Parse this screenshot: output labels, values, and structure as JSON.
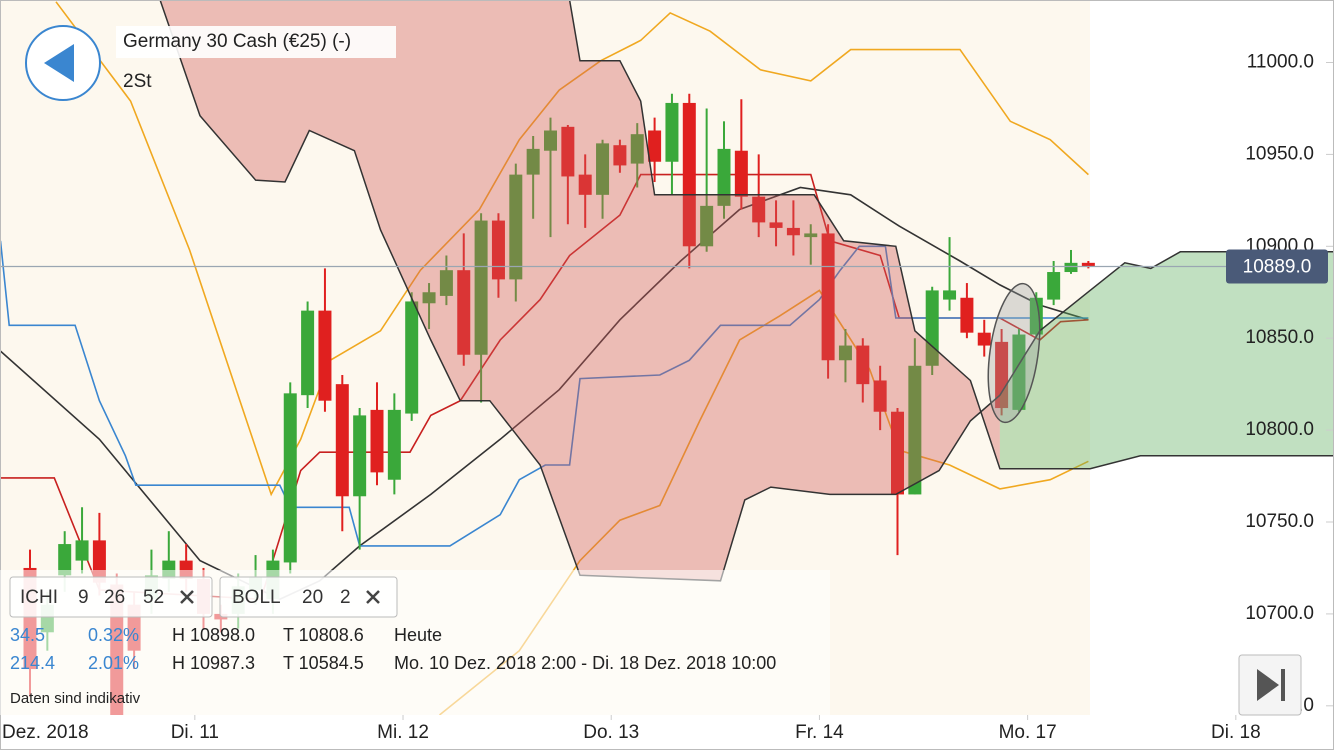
{
  "header": {
    "title": "Germany 30 Cash (€25) (-)",
    "timeframe": "2St"
  },
  "chart_data": {
    "type": "candlestick",
    "open": [
      10725,
      10690,
      10721,
      10729,
      10740,
      10716,
      10705,
      10708,
      10719,
      10729,
      10719,
      10700,
      10700,
      10713,
      10708,
      10728,
      10819,
      10865,
      10825,
      10764,
      10811,
      10773,
      10809,
      10869,
      10873,
      10887,
      10841,
      10914,
      10882,
      10939,
      10952,
      10965,
      10939,
      10928,
      10955,
      10945,
      10963,
      10946,
      10978,
      10900,
      10922,
      10952,
      10927,
      10913,
      10910,
      10905,
      10907,
      10838,
      10846,
      10827,
      10810,
      10765,
      10835,
      10871,
      10872,
      10853,
      10848,
      10811,
      10852,
      10871,
      10886,
      10891
    ],
    "high": [
      10735,
      10712,
      10745,
      10758,
      10755,
      10722,
      10712,
      10735,
      10745,
      10738,
      10725,
      10705,
      10722,
      10732,
      10735,
      10826,
      10870,
      10888,
      10830,
      10812,
      10826,
      10820,
      10875,
      10880,
      10895,
      10907,
      10918,
      10918,
      10945,
      10960,
      10970,
      10966,
      10950,
      10958,
      10958,
      10967,
      10970,
      10983,
      10983,
      10975,
      10968,
      10980,
      10950,
      10925,
      10925,
      10912,
      10912,
      10855,
      10850,
      10835,
      10812,
      10850,
      10878,
      10905,
      10880,
      10860,
      10855,
      10855,
      10875,
      10892,
      10898,
      10892
    ],
    "low": [
      10655,
      10680,
      10712,
      10722,
      10710,
      10645,
      10670,
      10700,
      10712,
      10712,
      10692,
      10690,
      10692,
      10705,
      10700,
      10722,
      10812,
      10810,
      10745,
      10735,
      10770,
      10765,
      10805,
      10855,
      10868,
      10835,
      10815,
      10872,
      10870,
      10915,
      10905,
      10912,
      10910,
      10915,
      10940,
      10932,
      10935,
      10928,
      10888,
      10897,
      10915,
      10920,
      10905,
      10900,
      10895,
      10890,
      10828,
      10826,
      10815,
      10800,
      10732,
      10765,
      10830,
      10865,
      10850,
      10840,
      10808,
      10810,
      10850,
      10868,
      10885,
      10888
    ],
    "close": [
      10670,
      10705,
      10738,
      10740,
      10717,
      10645,
      10680,
      10721,
      10729,
      10719,
      10700,
      10697,
      10715,
      10720,
      10729,
      10820,
      10865,
      10816,
      10764,
      10808,
      10777,
      10811,
      10870,
      10875,
      10887,
      10841,
      10914,
      10882,
      10939,
      10953,
      10963,
      10938,
      10928,
      10956,
      10944,
      10961,
      10946,
      10978,
      10900,
      10922,
      10953,
      10927,
      10913,
      10910,
      10906,
      10907,
      10838,
      10846,
      10825,
      10810,
      10765,
      10835,
      10876,
      10876,
      10853,
      10846,
      10812,
      10852,
      10872,
      10886,
      10891,
      10889
    ],
    "up_color": "#3aa83a",
    "down_color": "#e0201f",
    "xlim": [
      -1.7,
      75.2
    ],
    "xticks": [
      {
        "value": -2.5,
        "label": "Dez. 2018"
      },
      {
        "value": 9.5,
        "label": "Di. 11"
      },
      {
        "value": 21.5,
        "label": "Mi. 12"
      },
      {
        "value": 33.5,
        "label": "Do. 13"
      },
      {
        "value": 45.5,
        "label": "Fr. 14"
      },
      {
        "value": 57.5,
        "label": "Mo. 17"
      },
      {
        "value": 69.5,
        "label": "Di. 18"
      }
    ],
    "ylim": [
      10645,
      11034
    ],
    "yticks": [
      {
        "value": 10650,
        "label": "10650.0"
      },
      {
        "value": 10700,
        "label": "10700.0"
      },
      {
        "value": 10750,
        "label": "10750.0"
      },
      {
        "value": 10800,
        "label": "10800.0"
      },
      {
        "value": 10850,
        "label": "10850.0"
      },
      {
        "value": 10900,
        "label": "10900.0"
      },
      {
        "value": 10950,
        "label": "10950.0"
      },
      {
        "value": 11000,
        "label": "11000.0"
      }
    ],
    "current_price": {
      "value": 10889,
      "label": "10889.0"
    },
    "series": [
      {
        "color": "#f0a820",
        "x": [
          1.5,
          5.8,
          9.2,
          12.1,
          13.9,
          15.6,
          17.3,
          20.2,
          22.5,
          25.9,
          28.2,
          30.5,
          32.9,
          35.2,
          36.9,
          39.2,
          42.1,
          45,
          47.3,
          50.1,
          53.6,
          56.5,
          58.8,
          61
        ],
        "values": [
          11033,
          10979,
          10898,
          10816,
          10765,
          10795,
          10838,
          10854,
          10887,
          10920,
          10958,
          10985,
          11001,
          11012,
          11027,
          11017,
          10996,
          10990,
          11007,
          11007,
          11007,
          10968,
          10958,
          10939
        ]
      },
      {
        "color": "#f0a820",
        "x": [
          23.6,
          28.2,
          31.7,
          34,
          36.3,
          38.6,
          40.9,
          43.2,
          45.5,
          48.4,
          50.1,
          53,
          55.9,
          58.8,
          61
        ],
        "values": [
          10645,
          10680,
          10729,
          10751,
          10759,
          10805,
          10849,
          10862,
          10876,
          10833,
          10789,
          10781,
          10768,
          10773,
          10783
        ]
      },
      {
        "color": "#333333",
        "x": [
          -1.7,
          4,
          9.8,
          14.4,
          16.7,
          19,
          23.1,
          27.1,
          30.5,
          34,
          37.5,
          40.9,
          44.4,
          47.3,
          50.1,
          53.6,
          55.9,
          58.2,
          61
        ],
        "values": [
          10843,
          10795,
          10729,
          10708,
          10718,
          10737,
          10765,
          10795,
          10822,
          10860,
          10892,
          10920,
          10932,
          10928,
          10911,
          10892,
          10879,
          10868,
          10860
        ]
      },
      {
        "color": "#c8201f",
        "x": [
          -1.7,
          1.4,
          4,
          13.3,
          15.6,
          16.7,
          21.9,
          23.1,
          24.8,
          27.1,
          29.4,
          31.1,
          34,
          35.2,
          45,
          46.1,
          49,
          50.1,
          55.9,
          58.2,
          59.4,
          61
        ],
        "values": [
          10774,
          10774,
          10713,
          10708,
          10778,
          10788,
          10788,
          10808,
          10816,
          10849,
          10871,
          10895,
          10917,
          10939,
          10939,
          10903,
          10895,
          10861,
          10861,
          10849,
          10859,
          10860
        ]
      },
      {
        "color": "#3a86d0",
        "x": [
          -1.7,
          -1.2,
          2.6,
          4,
          5.5,
          6.1,
          14.4,
          15,
          18.4,
          19,
          24.2,
          27.1,
          28.2,
          29.7,
          31.1,
          31.7,
          36.3,
          38,
          39.8,
          43.8,
          45.5,
          46.7,
          47.8,
          49.3,
          49.9,
          61
        ],
        "values": [
          10903,
          10857,
          10857,
          10816,
          10786,
          10770,
          10770,
          10758,
          10758,
          10737,
          10737,
          10754,
          10773,
          10781,
          10781,
          10828,
          10830,
          10838,
          10857,
          10857,
          10871,
          10887,
          10900,
          10900,
          10861,
          10861
        ]
      }
    ],
    "cloud": {
      "split": 55.9,
      "colors": [
        "#cf5a5a",
        "#5cae5c"
      ],
      "span_a": {
        "x": [
          7.5,
          9.8,
          13,
          14.7,
          16.1,
          18.7,
          20.2,
          23.1,
          24.8,
          26.5,
          29.4,
          31.7,
          39.8,
          41.2,
          42.7,
          46.1,
          49.9,
          52.4,
          54.2,
          55.9,
          58.2,
          61.1,
          63.1,
          64.6,
          66.3,
          75.2
        ],
        "values": [
          11034,
          10971,
          10936,
          10935,
          10963,
          10952,
          10909,
          10849,
          10816,
          10816,
          10781,
          10721,
          10718,
          10762,
          10769,
          10765,
          10765,
          10778,
          10805,
          10819,
          10854,
          10876,
          10891,
          10888,
          10897,
          10897
        ]
      },
      "span_b": {
        "x": [
          7.5,
          31.1,
          31.7,
          34,
          35.2,
          36,
          45.2,
          46.9,
          49.9,
          51,
          54.2,
          55.9,
          61.1,
          64,
          75.2
        ],
        "values": [
          11034,
          11034,
          11001,
          11001,
          10979,
          10928,
          10928,
          10903,
          10900,
          10854,
          10827,
          10779,
          10779,
          10786,
          10786
        ]
      }
    }
  },
  "indicators": [
    {
      "name": "ICHI",
      "params": [
        "9",
        "26",
        "52"
      ]
    },
    {
      "name": "BOLL",
      "params": [
        "20",
        "2"
      ]
    }
  ],
  "stats": [
    {
      "change": "34.5",
      "change_pct": "0.32%",
      "high": "H 10898.0",
      "low": "T 10808.6",
      "period": "Heute"
    },
    {
      "change": "214.4",
      "change_pct": "2.01%",
      "high": "H 10987.3",
      "low": "T 10584.5",
      "period": "Mo. 10 Dez. 2018 2:00 - Di. 18 Dez. 2018 10:00"
    }
  ],
  "footnote": "Daten sind indikativ"
}
